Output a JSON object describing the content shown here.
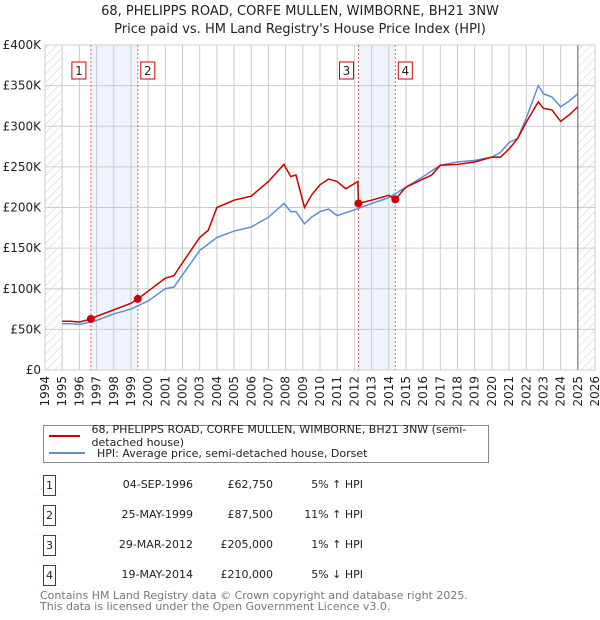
{
  "chart_data": {
    "type": "line",
    "title": "68, PHELIPPS ROAD, CORFE MULLEN, WIMBORNE, BH21 3NW",
    "subtitle": "Price paid vs. HM Land Registry's House Price Index (HPI)",
    "xlim": [
      1994,
      2026
    ],
    "ylim": [
      0,
      400000
    ],
    "x_ticks": [
      "1994",
      "1995",
      "1996",
      "1997",
      "1998",
      "1999",
      "2000",
      "2001",
      "2002",
      "2003",
      "2004",
      "2005",
      "2006",
      "2007",
      "2008",
      "2009",
      "2010",
      "2011",
      "2012",
      "2013",
      "2014",
      "2015",
      "2016",
      "2017",
      "2018",
      "2019",
      "2020",
      "2021",
      "2022",
      "2023",
      "2024",
      "2025",
      "2026"
    ],
    "y_ticks": [
      {
        "v": 0,
        "label": "£0"
      },
      {
        "v": 50000,
        "label": "£50K"
      },
      {
        "v": 100000,
        "label": "£100K"
      },
      {
        "v": 150000,
        "label": "£150K"
      },
      {
        "v": 200000,
        "label": "£200K"
      },
      {
        "v": 250000,
        "label": "£250K"
      },
      {
        "v": 300000,
        "label": "£300K"
      },
      {
        "v": 350000,
        "label": "£350K"
      },
      {
        "v": 400000,
        "label": "£400K"
      }
    ],
    "grid": true,
    "shaded_ranges": [
      [
        1996.67,
        1999.4
      ],
      [
        2012.24,
        2014.38
      ]
    ],
    "series": [
      {
        "name": "68, PHELIPPS ROAD, CORFE MULLEN, WIMBORNE, BH21 3NW (semi-detached house)",
        "color": "#cc0000",
        "x": [
          1995,
          1995.5,
          1996,
          1996.67,
          1997,
          1998,
          1999,
          1999.4,
          2000,
          2001,
          2001.5,
          2002,
          2003,
          2003.5,
          2004,
          2005,
          2006,
          2007,
          2007.9,
          2008.3,
          2008.6,
          2009.1,
          2009.5,
          2010,
          2010.5,
          2011,
          2011.5,
          2012.2,
          2012.24,
          2013,
          2014,
          2014.38,
          2015,
          2016,
          2016.5,
          2017,
          2018,
          2019,
          2020,
          2020.5,
          2021,
          2021.5,
          2022,
          2022.7,
          2023,
          2023.5,
          2024,
          2024.5,
          2025
        ],
        "y": [
          60000,
          60000,
          59000,
          62750,
          66000,
          74000,
          82000,
          87500,
          97000,
          113000,
          116000,
          132000,
          163000,
          172000,
          200000,
          209000,
          214000,
          232000,
          253000,
          238000,
          240000,
          200000,
          215000,
          228000,
          235000,
          232000,
          223000,
          232000,
          205000,
          209000,
          215000,
          210000,
          225000,
          235000,
          240000,
          252000,
          253000,
          256000,
          262000,
          262000,
          272000,
          285000,
          305000,
          330000,
          322000,
          320000,
          306000,
          314000,
          324000
        ]
      },
      {
        "name": "HPI: Average price, semi-detached house, Dorset",
        "color": "#5b8fd4",
        "x": [
          1995,
          1995.5,
          1996,
          1997,
          1998,
          1999,
          2000,
          2001,
          2001.5,
          2002,
          2003,
          2004,
          2005,
          2006,
          2007,
          2007.9,
          2008.3,
          2008.6,
          2009.1,
          2009.5,
          2010,
          2010.5,
          2011,
          2012,
          2013,
          2014,
          2015,
          2016,
          2017,
          2018,
          2019,
          2020,
          2020.5,
          2021,
          2021.5,
          2022,
          2022.7,
          2023,
          2023.5,
          2024,
          2024.5,
          2025
        ],
        "y": [
          57000,
          57000,
          56000,
          61000,
          69000,
          75000,
          85000,
          100000,
          102000,
          117000,
          147000,
          163000,
          171000,
          176000,
          188000,
          205000,
          195000,
          195000,
          180000,
          188000,
          195000,
          198000,
          190000,
          197000,
          205000,
          212000,
          225000,
          238000,
          252000,
          256000,
          258000,
          262000,
          268000,
          280000,
          285000,
          310000,
          350000,
          340000,
          336000,
          324000,
          331000,
          340000
        ]
      }
    ],
    "sales": [
      {
        "id": "1",
        "x": 1996.67,
        "y": 62750,
        "date": "04-SEP-1996",
        "price": "£62,750",
        "hpi": "5% ↑ HPI"
      },
      {
        "id": "2",
        "x": 1999.4,
        "y": 87500,
        "date": "25-MAY-1999",
        "price": "£87,500",
        "hpi": "11% ↑ HPI"
      },
      {
        "id": "3",
        "x": 2012.24,
        "y": 205000,
        "date": "29-MAR-2012",
        "price": "£205,000",
        "hpi": "1% ↑ HPI"
      },
      {
        "id": "4",
        "x": 2014.38,
        "y": 210000,
        "date": "19-MAY-2014",
        "price": "£210,000",
        "hpi": "5% ↓ HPI"
      }
    ]
  },
  "legend": {
    "red": "68, PHELIPPS ROAD, CORFE MULLEN, WIMBORNE, BH21 3NW (semi-detached house)",
    "blue": "HPI: Average price, semi-detached house, Dorset"
  },
  "footer": {
    "line1": "Contains HM Land Registry data © Crown copyright and database right 2025.",
    "line2": "This data is licensed under the Open Government Licence v3.0."
  }
}
